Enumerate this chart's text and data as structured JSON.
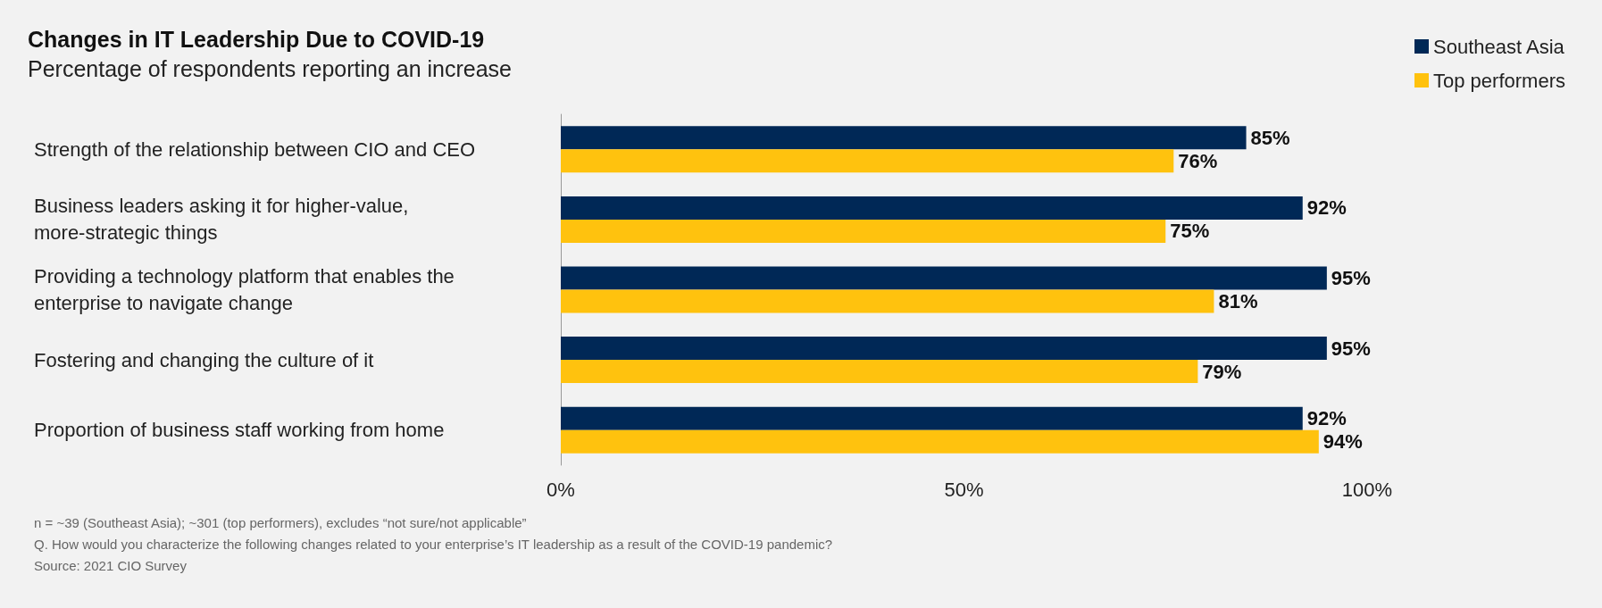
{
  "chart_data": {
    "type": "bar",
    "orientation": "horizontal",
    "title": "Changes in IT Leadership Due to COVID-19",
    "subtitle": "Percentage of respondents reporting an increase",
    "categories": [
      "Strength of the relationship between CIO and CEO",
      "Business leaders asking it for higher-value, more-strategic things",
      "Providing a technology platform that enables the enterprise to navigate change",
      "Fostering and changing the culture of it",
      "Proportion of business staff working from home"
    ],
    "series": [
      {
        "name": "Southeast Asia",
        "color": "#002856",
        "values": [
          85,
          92,
          95,
          95,
          92
        ],
        "value_labels": [
          "85%",
          "92%",
          "95%",
          "95%",
          "92%"
        ]
      },
      {
        "name": "Top performers",
        "color": "#ffc20e",
        "values": [
          76,
          75,
          81,
          79,
          94
        ],
        "value_labels": [
          "76%",
          "75%",
          "81%",
          "79%",
          "94%"
        ]
      }
    ],
    "xlim": [
      0,
      100
    ],
    "xticks": [
      {
        "value": 0,
        "label": "0%"
      },
      {
        "value": 50,
        "label": "50%"
      },
      {
        "value": 100,
        "label": "100%"
      }
    ],
    "grid": false,
    "legend": "top right",
    "annotations": [
      "n = ~39 (Southeast Asia); ~301 (top performers), excludes “not sure/not applicable”",
      "Q. How would you characterize the following changes related to your enterprise’s IT leadership as a result of the COVID-19 pandemic?",
      "Source: 2021 CIO Survey"
    ]
  }
}
